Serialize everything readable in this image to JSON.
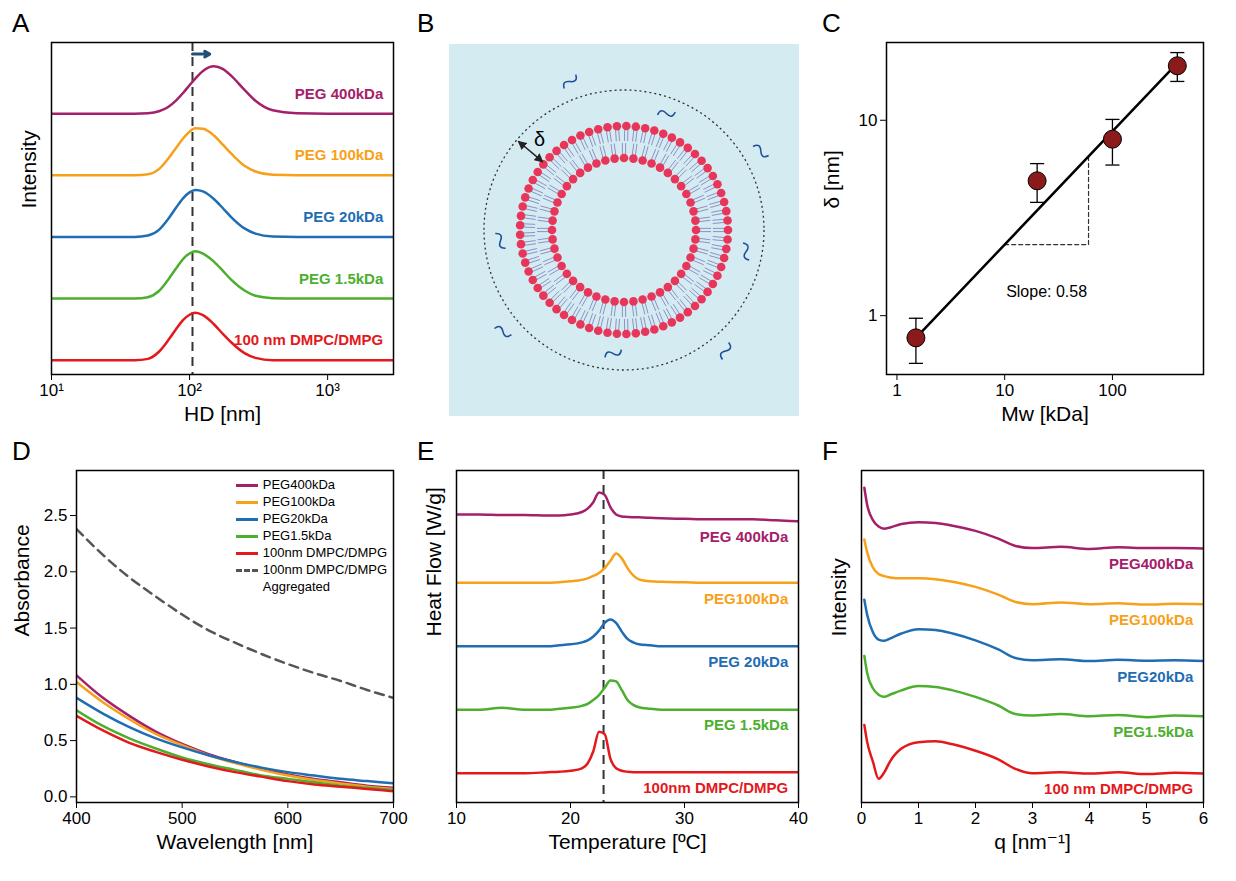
{
  "chart_data": [
    {
      "panel_label": "A",
      "type": "line",
      "x_label": "HD [nm]",
      "y_label": "Intensity",
      "log": "x",
      "tick_labels": "x",
      "legend": "inline",
      "grid": false,
      "xlim": [
        10,
        3000
      ],
      "ylim": [
        -0.3,
        6.7
      ],
      "xticks": [
        {
          "value": 10,
          "label": "10¹"
        },
        {
          "value": 100,
          "label": "10²"
        },
        {
          "value": 1000,
          "label": "10³"
        }
      ],
      "reference_line_x": 105,
      "shift_arrow": [
        105,
        140
      ],
      "x": [
        10,
        20,
        30,
        40,
        50,
        60,
        70,
        80,
        90,
        100,
        110,
        125,
        150,
        175,
        200,
        250,
        300,
        400,
        600,
        1000,
        3000
      ],
      "series": [
        {
          "name": "PEG 400kDa",
          "color": "#a4206a",
          "values": [
            5.2,
            5.2,
            5.2,
            5.2,
            5.21,
            5.25,
            5.34,
            5.48,
            5.64,
            5.8,
            5.94,
            6.1,
            6.2,
            6.14,
            6.0,
            5.7,
            5.47,
            5.27,
            5.21,
            5.2,
            5.2
          ]
        },
        {
          "name": "PEG 100kDa",
          "color": "#f7a11a",
          "values": [
            3.9,
            3.9,
            3.9,
            3.9,
            3.92,
            4.03,
            4.25,
            4.48,
            4.68,
            4.82,
            4.89,
            4.88,
            4.74,
            4.54,
            4.36,
            4.1,
            3.98,
            3.91,
            3.9,
            3.9,
            3.9
          ]
        },
        {
          "name": "PEG 20kDa",
          "color": "#1f6db3",
          "values": [
            2.6,
            2.6,
            2.6,
            2.6,
            2.63,
            2.75,
            2.98,
            3.22,
            3.42,
            3.54,
            3.59,
            3.56,
            3.4,
            3.2,
            3.02,
            2.78,
            2.67,
            2.61,
            2.6,
            2.6,
            2.6
          ]
        },
        {
          "name": "PEG 1.5kDa",
          "color": "#4caf2f",
          "values": [
            1.3,
            1.3,
            1.3,
            1.3,
            1.33,
            1.46,
            1.7,
            1.94,
            2.14,
            2.25,
            2.3,
            2.25,
            2.08,
            1.88,
            1.7,
            1.47,
            1.36,
            1.31,
            1.3,
            1.3,
            1.3
          ]
        },
        {
          "name": "100 nm DMPC/DMPG",
          "color": "#e3191c",
          "values": [
            0,
            0,
            0,
            0,
            0.03,
            0.18,
            0.42,
            0.66,
            0.85,
            0.96,
            1.0,
            0.95,
            0.76,
            0.55,
            0.38,
            0.15,
            0.05,
            0,
            0,
            0,
            0
          ]
        }
      ]
    },
    {
      "panel_label": "B",
      "type": "diagram",
      "annotation": "δ"
    },
    {
      "panel_label": "C",
      "type": "scatter",
      "x_label": "Mw [kDa]",
      "y_label": "δ [nm]",
      "log": true,
      "grid": false,
      "marker": "circle",
      "color": "#8b1a1a",
      "xlim": [
        0.8,
        700
      ],
      "ylim": [
        0.5,
        25
      ],
      "xticks": [
        1,
        10,
        100
      ],
      "yticks": [
        1,
        10
      ],
      "x": [
        1.5,
        20,
        100,
        400
      ],
      "values": [
        0.77,
        4.9,
        8.0,
        19
      ],
      "errors": [
        0.2,
        1.1,
        2.1,
        3.2
      ],
      "fit": {
        "x": [
          1.5,
          400
        ],
        "y": [
          0.77,
          19.6
        ]
      },
      "guide": {
        "x": [
          10,
          60,
          60
        ],
        "y": [
          2.31,
          2.31,
          6.54
        ]
      },
      "annotation": "Slope: 0.58"
    },
    {
      "panel_label": "D",
      "type": "line",
      "x_label": "Wavelength [nm]",
      "y_label": "Absorbance",
      "legend": "top-right",
      "grid": false,
      "xlim": [
        400,
        700
      ],
      "ylim": [
        -0.05,
        2.9
      ],
      "xticks": [
        400,
        500,
        600,
        700
      ],
      "yticks": [
        {
          "value": 0,
          "label": "0.0"
        },
        0.5,
        {
          "value": 1,
          "label": "1.0"
        },
        1.5,
        {
          "value": 2,
          "label": "2.0"
        },
        2.5
      ],
      "x": [
        400,
        425,
        450,
        475,
        500,
        525,
        550,
        575,
        600,
        625,
        650,
        675,
        700
      ],
      "series": [
        {
          "name": "PEG400kDa",
          "color": "#a4206a",
          "line_style": "solid",
          "values": [
            1.08,
            0.88,
            0.72,
            0.58,
            0.47,
            0.38,
            0.31,
            0.25,
            0.2,
            0.16,
            0.13,
            0.1,
            0.08
          ]
        },
        {
          "name": "PEG100kDa",
          "color": "#f7a11a",
          "line_style": "solid",
          "values": [
            1.02,
            0.84,
            0.69,
            0.56,
            0.46,
            0.37,
            0.3,
            0.24,
            0.19,
            0.15,
            0.12,
            0.09,
            0.07
          ]
        },
        {
          "name": "PEG20kDa",
          "color": "#1f6db3",
          "line_style": "solid",
          "values": [
            0.88,
            0.74,
            0.62,
            0.52,
            0.44,
            0.37,
            0.31,
            0.26,
            0.22,
            0.19,
            0.16,
            0.14,
            0.12
          ]
        },
        {
          "name": "PEG1.5kDa",
          "color": "#4caf2f",
          "line_style": "solid",
          "values": [
            0.77,
            0.63,
            0.52,
            0.43,
            0.35,
            0.29,
            0.24,
            0.19,
            0.16,
            0.13,
            0.1,
            0.08,
            0.06
          ]
        },
        {
          "name": "100nm DMPC/DMPG",
          "color": "#e3191c",
          "line_style": "solid",
          "values": [
            0.72,
            0.59,
            0.48,
            0.4,
            0.33,
            0.27,
            0.22,
            0.18,
            0.14,
            0.11,
            0.09,
            0.07,
            0.05
          ]
        },
        {
          "name": "100nm DMPC/DMPG Aggregated",
          "color": "#555555",
          "line_style": "dashed",
          "values": [
            2.38,
            2.15,
            1.95,
            1.78,
            1.62,
            1.48,
            1.37,
            1.27,
            1.18,
            1.1,
            1.03,
            0.95,
            0.88
          ]
        }
      ]
    },
    {
      "panel_label": "E",
      "type": "line",
      "x_label": "Temperature [ºC]",
      "y_label": "Heat Flow [W/g]",
      "tick_labels": "x",
      "legend": "inline",
      "grid": false,
      "xlim": [
        10,
        40
      ],
      "ylim": [
        -0.6,
        6.2
      ],
      "xticks": [
        10,
        20,
        30,
        40
      ],
      "reference_line_x": 22.9,
      "x": [
        10,
        12,
        14,
        16,
        18,
        19,
        20,
        21,
        21.5,
        22,
        22.5,
        23,
        23.5,
        24,
        24.5,
        25,
        25.5,
        26,
        27,
        28,
        30,
        32,
        34,
        36,
        38,
        40
      ],
      "series": [
        {
          "name": "PEG 400kDa",
          "color": "#a4206a",
          "values": [
            5.3,
            5.3,
            5.29,
            5.29,
            5.28,
            5.28,
            5.3,
            5.35,
            5.42,
            5.55,
            5.75,
            5.7,
            5.45,
            5.3,
            5.26,
            5.25,
            5.24,
            5.24,
            5.23,
            5.22,
            5.21,
            5.2,
            5.2,
            5.2,
            5.18,
            5.16
          ]
        },
        {
          "name": "PEG100kDa",
          "color": "#f7a11a",
          "values": [
            3.9,
            3.9,
            3.9,
            3.9,
            3.9,
            3.91,
            3.93,
            3.96,
            3.99,
            4.04,
            4.1,
            4.2,
            4.35,
            4.5,
            4.4,
            4.2,
            4.05,
            3.97,
            3.93,
            3.92,
            3.91,
            3.9,
            3.9,
            3.9,
            3.9,
            3.9
          ]
        },
        {
          "name": "PEG 20kDa",
          "color": "#1f6db3",
          "values": [
            2.6,
            2.6,
            2.6,
            2.6,
            2.6,
            2.62,
            2.64,
            2.68,
            2.72,
            2.8,
            2.92,
            3.08,
            3.15,
            3.08,
            2.9,
            2.75,
            2.68,
            2.64,
            2.62,
            2.6,
            2.6,
            2.6,
            2.6,
            2.6,
            2.6,
            2.6
          ]
        },
        {
          "name": "PEG 1.5kDa",
          "color": "#4caf2f",
          "values": [
            1.3,
            1.3,
            1.34,
            1.3,
            1.3,
            1.32,
            1.34,
            1.38,
            1.42,
            1.5,
            1.6,
            1.75,
            1.9,
            1.88,
            1.7,
            1.5,
            1.4,
            1.35,
            1.32,
            1.3,
            1.3,
            1.3,
            1.3,
            1.3,
            1.3,
            1.3
          ]
        },
        {
          "name": "100nm DMPC/DMPG",
          "color": "#e3191c",
          "values": [
            0,
            0,
            0,
            0,
            0.02,
            0.03,
            0.05,
            0.1,
            0.2,
            0.45,
            0.85,
            0.8,
            0.3,
            0.1,
            0.05,
            0.03,
            0.02,
            0.02,
            0.02,
            0.02,
            0.02,
            0.02,
            0.02,
            0.02,
            0.02,
            0.02
          ]
        }
      ]
    },
    {
      "panel_label": "F",
      "type": "line",
      "x_label": "q [nm⁻¹]",
      "y_label": "Intensity",
      "tick_labels": "x",
      "legend": "inline",
      "grid": false,
      "xlim": [
        0,
        6
      ],
      "ylim": [
        -0.5,
        7.2
      ],
      "xticks": [
        0,
        1,
        2,
        3,
        4,
        5,
        6
      ],
      "x": [
        0.05,
        0.1,
        0.2,
        0.3,
        0.4,
        0.5,
        0.7,
        1.0,
        1.3,
        1.6,
        2.0,
        2.4,
        2.7,
        3.0,
        3.5,
        4.0,
        4.5,
        5.0,
        5.5,
        6.0
      ],
      "series": [
        {
          "name": "PEG400kDa",
          "color": "#a4206a",
          "values": [
            6.8,
            6.4,
            6.05,
            5.9,
            5.85,
            5.88,
            5.96,
            6.0,
            5.98,
            5.92,
            5.8,
            5.62,
            5.45,
            5.4,
            5.43,
            5.38,
            5.42,
            5.4,
            5.4,
            5.39
          ]
        },
        {
          "name": "PEG100kDa",
          "color": "#f7a11a",
          "values": [
            5.6,
            5.3,
            4.95,
            4.8,
            4.75,
            4.72,
            4.7,
            4.7,
            4.68,
            4.62,
            4.5,
            4.32,
            4.15,
            4.1,
            4.14,
            4.1,
            4.12,
            4.09,
            4.11,
            4.1
          ]
        },
        {
          "name": "PEG20kDa",
          "color": "#1f6db3",
          "values": [
            4.2,
            3.85,
            3.45,
            3.28,
            3.25,
            3.3,
            3.42,
            3.52,
            3.5,
            3.42,
            3.26,
            3.05,
            2.85,
            2.8,
            2.82,
            2.78,
            2.81,
            2.79,
            2.8,
            2.78
          ]
        },
        {
          "name": "PEG1.5kDa",
          "color": "#4caf2f",
          "values": [
            2.9,
            2.5,
            2.15,
            2.0,
            1.95,
            2.0,
            2.1,
            2.2,
            2.18,
            2.1,
            1.95,
            1.75,
            1.55,
            1.52,
            1.55,
            1.5,
            1.53,
            1.48,
            1.52,
            1.5
          ]
        },
        {
          "name": "100 nm DMPC/DMPG",
          "color": "#e3191c",
          "values": [
            1.3,
            0.9,
            0.45,
            0.05,
            0.2,
            0.45,
            0.75,
            0.9,
            0.92,
            0.85,
            0.7,
            0.5,
            0.28,
            0.18,
            0.2,
            0.17,
            0.2,
            0.16,
            0.19,
            0.17
          ]
        }
      ]
    }
  ]
}
